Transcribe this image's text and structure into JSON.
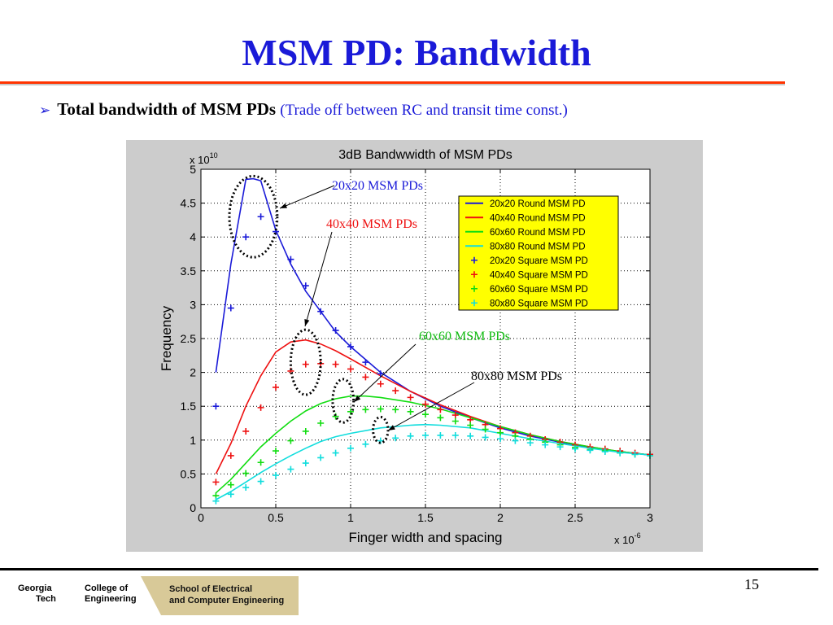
{
  "slide": {
    "title": "MSM PD: Bandwidth",
    "bullet_main": "Total bandwidth of MSM PDs",
    "bullet_sub": "(Trade off between RC and transit time const.)",
    "page_number": "15"
  },
  "footer": {
    "gt_line1": "Georgia",
    "gt_line2": "Tech",
    "coe_line1": "College of",
    "coe_line2": "Engineering",
    "school_line1": "School of Electrical",
    "school_line2": "and Computer Engineering"
  },
  "callouts": [
    {
      "text": "20x20 MSM PDs",
      "color": "#1a1ad8"
    },
    {
      "text": "40x40 MSM PDs",
      "color": "#ee1111"
    },
    {
      "text": "60x60 MSM PDs",
      "color": "#11bb11"
    },
    {
      "text": "80x80 MSM PDs",
      "color": "#000000"
    }
  ],
  "chart_data": {
    "type": "line",
    "title": "3dB Bandwwidth of MSM PDs",
    "xlabel": "Finger width and spacing",
    "ylabel": "Frequency",
    "x_multiplier": "x 10",
    "x_exponent": "-6",
    "y_multiplier": "x 10",
    "y_exponent": "10",
    "xlim": [
      0,
      3
    ],
    "ylim": [
      0,
      5
    ],
    "x_ticks": [
      0,
      0.5,
      1,
      1.5,
      2,
      2.5,
      3
    ],
    "x_tick_labels": [
      "0",
      "0.5",
      "1",
      "1.5",
      "2",
      "2.5",
      "3"
    ],
    "y_ticks": [
      0,
      0.5,
      1,
      1.5,
      2,
      2.5,
      3,
      3.5,
      4,
      4.5,
      5
    ],
    "y_tick_labels": [
      "0",
      "0.5",
      "1",
      "1.5",
      "2",
      "2.5",
      "3",
      "3.5",
      "4",
      "4.5",
      "5"
    ],
    "grid": true,
    "legend_position": "top-right",
    "legend_bg": "#ffff00",
    "series": [
      {
        "name": "20x20 Round MSM PD",
        "kind": "line",
        "color": "#1a1ad8",
        "x": [
          0.1,
          0.2,
          0.3,
          0.35,
          0.4,
          0.5,
          0.6,
          0.7,
          0.8,
          0.9,
          1.0,
          1.2,
          1.4,
          1.6,
          1.8,
          2.0,
          2.2,
          2.4,
          2.6,
          2.8,
          3.0
        ],
        "y": [
          2.0,
          3.6,
          4.85,
          4.86,
          4.83,
          4.1,
          3.6,
          3.2,
          2.9,
          2.6,
          2.38,
          2.0,
          1.72,
          1.5,
          1.33,
          1.18,
          1.06,
          0.97,
          0.89,
          0.83,
          0.78
        ]
      },
      {
        "name": "40x40 Round MSM PD",
        "kind": "line",
        "color": "#ee1111",
        "x": [
          0.1,
          0.2,
          0.3,
          0.4,
          0.5,
          0.6,
          0.7,
          0.8,
          0.9,
          1.0,
          1.2,
          1.4,
          1.6,
          1.8,
          2.0,
          2.2,
          2.4,
          2.6,
          2.8,
          3.0
        ],
        "y": [
          0.5,
          0.95,
          1.5,
          1.95,
          2.3,
          2.45,
          2.48,
          2.42,
          2.32,
          2.2,
          1.95,
          1.72,
          1.52,
          1.35,
          1.2,
          1.08,
          0.98,
          0.9,
          0.83,
          0.78
        ]
      },
      {
        "name": "60x60 Round MSM PD",
        "kind": "line",
        "color": "#11dd11",
        "x": [
          0.1,
          0.2,
          0.3,
          0.4,
          0.5,
          0.6,
          0.7,
          0.8,
          0.9,
          1.0,
          1.1,
          1.2,
          1.4,
          1.6,
          1.8,
          2.0,
          2.2,
          2.4,
          2.6,
          2.8,
          3.0
        ],
        "y": [
          0.22,
          0.42,
          0.66,
          0.9,
          1.1,
          1.28,
          1.43,
          1.54,
          1.61,
          1.65,
          1.65,
          1.63,
          1.56,
          1.46,
          1.33,
          1.2,
          1.08,
          0.98,
          0.9,
          0.83,
          0.78
        ]
      },
      {
        "name": "80x80 Round MSM PD",
        "kind": "line",
        "color": "#11dddd",
        "x": [
          0.1,
          0.2,
          0.3,
          0.4,
          0.5,
          0.6,
          0.7,
          0.8,
          0.9,
          1.0,
          1.2,
          1.4,
          1.5,
          1.6,
          1.8,
          2.0,
          2.2,
          2.4,
          2.6,
          2.8,
          3.0
        ],
        "y": [
          0.12,
          0.24,
          0.38,
          0.52,
          0.65,
          0.77,
          0.88,
          0.98,
          1.05,
          1.1,
          1.18,
          1.22,
          1.23,
          1.22,
          1.18,
          1.1,
          1.02,
          0.95,
          0.88,
          0.82,
          0.78
        ]
      },
      {
        "name": "20x20 Square MSM PD",
        "kind": "marker",
        "color": "#1a1ad8",
        "x": [
          0.1,
          0.2,
          0.3,
          0.4,
          0.5,
          0.6,
          0.7,
          0.8,
          0.9,
          1.0,
          1.1,
          1.2
        ],
        "y": [
          1.5,
          2.95,
          4.0,
          4.3,
          4.08,
          3.67,
          3.28,
          2.9,
          2.62,
          2.38,
          2.15,
          1.98
        ]
      },
      {
        "name": "40x40 Square MSM PD",
        "kind": "marker",
        "color": "#ee1111",
        "x": [
          0.1,
          0.2,
          0.3,
          0.4,
          0.5,
          0.6,
          0.7,
          0.8,
          0.9,
          1.0,
          1.1,
          1.2,
          1.3,
          1.4,
          1.5,
          1.6,
          1.7,
          1.8,
          1.9,
          2.0,
          2.1,
          2.2,
          2.3,
          2.4,
          2.5,
          2.6,
          2.7,
          2.8,
          2.9,
          3.0
        ],
        "y": [
          0.38,
          0.77,
          1.13,
          1.48,
          1.78,
          2.02,
          2.12,
          2.13,
          2.12,
          2.05,
          1.93,
          1.83,
          1.73,
          1.63,
          1.53,
          1.45,
          1.37,
          1.3,
          1.23,
          1.17,
          1.11,
          1.06,
          1.01,
          0.97,
          0.93,
          0.9,
          0.87,
          0.84,
          0.81,
          0.79
        ]
      },
      {
        "name": "60x60 Square MSM PD",
        "kind": "marker",
        "color": "#11dd11",
        "x": [
          0.1,
          0.2,
          0.3,
          0.4,
          0.5,
          0.6,
          0.7,
          0.8,
          0.9,
          1.0,
          1.1,
          1.2,
          1.3,
          1.4,
          1.5,
          1.6,
          1.7,
          1.8,
          1.9,
          2.0,
          2.1,
          2.2,
          2.3,
          2.4,
          2.5,
          2.6,
          2.7,
          2.8,
          2.9,
          3.0
        ],
        "y": [
          0.18,
          0.34,
          0.51,
          0.67,
          0.84,
          0.99,
          1.13,
          1.25,
          1.35,
          1.42,
          1.45,
          1.46,
          1.45,
          1.42,
          1.38,
          1.33,
          1.28,
          1.22,
          1.16,
          1.11,
          1.06,
          1.01,
          0.97,
          0.93,
          0.89,
          0.86,
          0.84,
          0.81,
          0.79,
          0.77
        ]
      },
      {
        "name": "80x80 Square MSM PD",
        "kind": "marker",
        "color": "#11dddd",
        "x": [
          0.1,
          0.2,
          0.3,
          0.4,
          0.5,
          0.6,
          0.7,
          0.8,
          0.9,
          1.0,
          1.1,
          1.2,
          1.3,
          1.4,
          1.5,
          1.6,
          1.7,
          1.8,
          1.9,
          2.0,
          2.1,
          2.2,
          2.3,
          2.4,
          2.5,
          2.6,
          2.7,
          2.8,
          2.9,
          3.0
        ],
        "y": [
          0.1,
          0.2,
          0.3,
          0.39,
          0.48,
          0.57,
          0.66,
          0.74,
          0.81,
          0.88,
          0.94,
          0.99,
          1.03,
          1.06,
          1.07,
          1.07,
          1.07,
          1.06,
          1.04,
          1.02,
          0.99,
          0.96,
          0.93,
          0.9,
          0.87,
          0.85,
          0.83,
          0.81,
          0.79,
          0.77
        ]
      }
    ]
  }
}
